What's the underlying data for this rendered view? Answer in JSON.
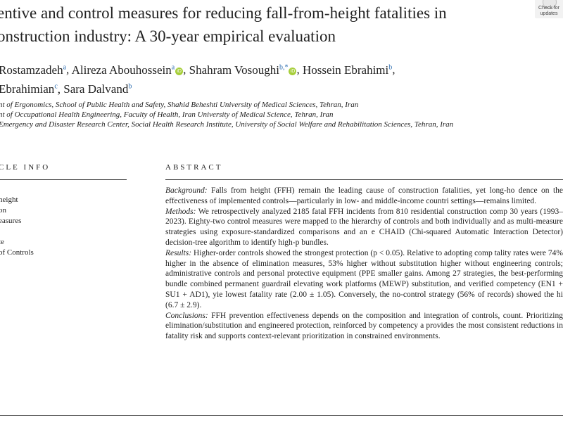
{
  "paper": {
    "title_line1": "entive and control measures for reducing fall-from-height fatalities in",
    "title_line2": "onstruction industry: A 30-year empirical evaluation",
    "check_updates": "Check for updates",
    "authors": [
      {
        "name": "Rostamzadeh",
        "sup": "a",
        "orcid": false,
        "sep": ",  "
      },
      {
        "name": "Alireza Abouhossein",
        "sup": "a",
        "orcid": true,
        "sep": ",  "
      },
      {
        "name": "Shahram Vosoughi",
        "sup": "b,*",
        "orcid": true,
        "sep": ",  "
      },
      {
        "name": "Hossein Ebrahimi",
        "sup": "b",
        "orcid": false,
        "sep": ","
      },
      {
        "name": "Ebrahimian",
        "sup": "c",
        "orcid": false,
        "sep": ",  "
      },
      {
        "name": "Sara Dalvand",
        "sup": "b",
        "orcid": false,
        "sep": ""
      }
    ],
    "affiliations": [
      "nt of Ergonomics, School of Public Health and Safety, Shahid Beheshti University of Medical Sciences, Tehran, Iran",
      "nt of Occupational Health Engineering, Faculty of Health, Iran University of Medical Science, Tehran, Iran",
      "Emergency and Disaster Research Center, Social Health Research Institute, University of Social Welfare and Rehabilitation Sciences, Tehran, Iran"
    ],
    "article_info_heading": "CLE INFO",
    "abstract_heading": "ABSTRACT",
    "keywords": [
      "height",
      "on",
      "easures",
      "",
      "te",
      "of Controls"
    ],
    "abstract": {
      "background_label": "Background:",
      "background_text": "Falls from height (FFH) remain the leading cause of construction fatalities, yet long-ho dence on the effectiveness of implemented controls—particularly in low- and middle-income countri settings—remains limited.",
      "methods_label": "Methods:",
      "methods_text": "We retrospectively analyzed 2185 fatal FFH incidents from 810 residential construction comp 30 years (1993–2023). Eighty-two control measures were mapped to the hierarchy of controls and both individually and as multi-measure strategies using exposure-standardized comparisons and an e CHAID (Chi-squared Automatic Interaction Detector) decision-tree algorithm to identify high-p bundles.",
      "results_label": "Results:",
      "results_text": "Higher-order controls showed the strongest protection (p < 0.05). Relative to adopting comp tality rates were 74% higher in the absence of elimination measures, 53% higher without substitution higher without engineering controls; administrative controls and personal protective equipment (PPE smaller gains. Among 27 strategies, the best-performing bundle combined permanent guardrail elevating work platforms (MEWP) substitution, and verified competency (EN1 + SU1 + AD1), yie lowest fatality rate (2.00 ± 1.05). Conversely, the no-control strategy (56% of records) showed the hi (6.7 ± 2.9).",
      "conclusions_label": "Conclusions:",
      "conclusions_text": "FFH prevention effectiveness depends on the composition and integration of controls, count. Prioritizing elimination/substitution and engineered protection, reinforced by competency a provides the most consistent reductions in fatality risk and supports context-relevant prioritization in constrained environments."
    }
  }
}
